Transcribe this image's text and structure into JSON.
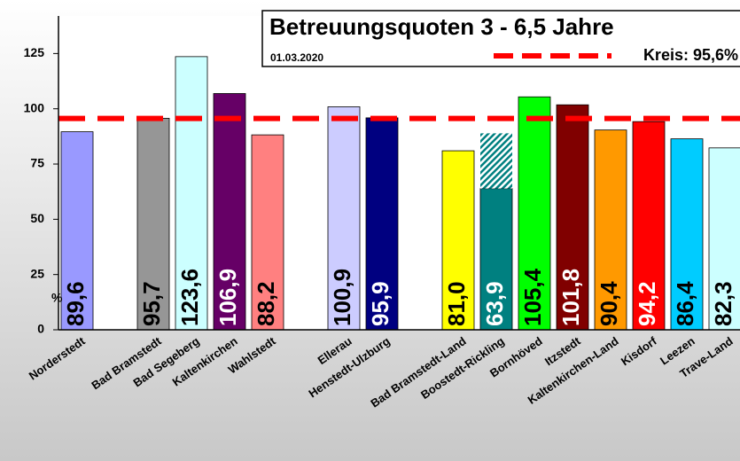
{
  "chart_data": {
    "type": "bar",
    "title": "Betreuungsquoten 3 - 6,5 Jahre",
    "subtitle": "01.03.2020",
    "y_label": "%",
    "categories": [
      "Norderstedt",
      null,
      "Bad Bramstedt",
      "Bad Segeberg",
      "Kaltenkirchen",
      "Wahlstedt",
      null,
      "Ellerau",
      "Henstedt-Ulzburg",
      null,
      "Bad Bramstedt-Land",
      "Boostedt-Rickling",
      "Bornhöved",
      "Itzstedt",
      "Kaltenkirchen-Land",
      "Kisdorf",
      "Leezen",
      "Trave-Land"
    ],
    "values": [
      89.6,
      null,
      95.7,
      123.6,
      106.9,
      88.2,
      null,
      100.9,
      95.9,
      null,
      81.0,
      63.9,
      105.4,
      101.8,
      90.4,
      94.2,
      86.4,
      82.3
    ],
    "value_labels": [
      "89,6",
      null,
      "95,7",
      "123,6",
      "106,9",
      "88,2",
      null,
      "100,9",
      "95,9",
      null,
      "81,0",
      "63,9",
      "105,4",
      "101,8",
      "90,4",
      "94,2",
      "86,4",
      "82,3"
    ],
    "hatched_values": [
      null,
      null,
      null,
      null,
      null,
      null,
      null,
      null,
      null,
      null,
      null,
      25,
      null,
      null,
      null,
      null,
      null,
      null
    ],
    "colors": [
      "#9999ff",
      null,
      "#969696",
      "#ccffff",
      "#660066",
      "#ff8080",
      null,
      "#ccccff",
      "#000080",
      null,
      "#ffff00",
      "#008080",
      "#00ff00",
      "#800000",
      "#ff9900",
      "#ff0000",
      "#00ccff",
      "#ccffff"
    ],
    "reference": {
      "value": 95.6,
      "label": "Kreis: 95,6%",
      "color": "#ff0000"
    },
    "ylim": [
      0,
      142
    ],
    "yticks": [
      0,
      25,
      50,
      75,
      100,
      125
    ],
    "grid": false
  }
}
